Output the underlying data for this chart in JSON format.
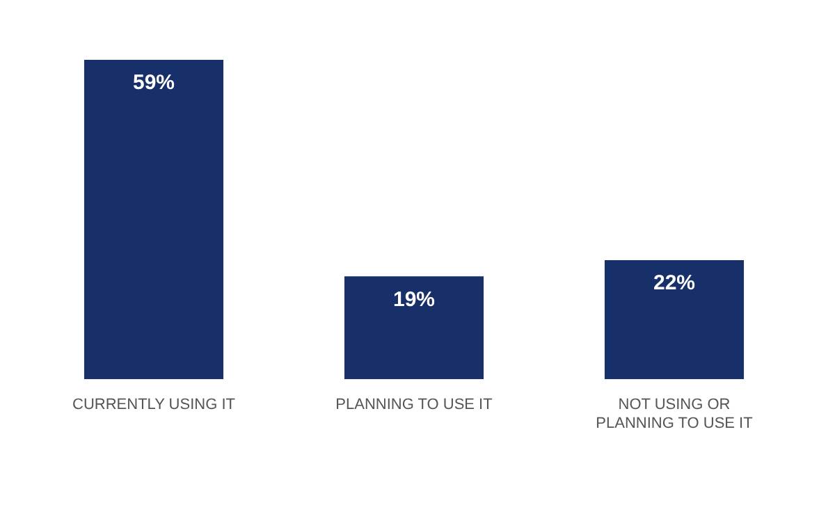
{
  "chart_data": {
    "type": "bar",
    "categories": [
      "CURRENTLY USING IT",
      "PLANNING TO USE IT",
      "NOT USING OR PLANNING TO USE IT"
    ],
    "values": [
      59,
      19,
      22
    ],
    "color": "#17306a",
    "value_labels": [
      "59%",
      "19%",
      "22%"
    ],
    "grid": false,
    "legend": false
  }
}
